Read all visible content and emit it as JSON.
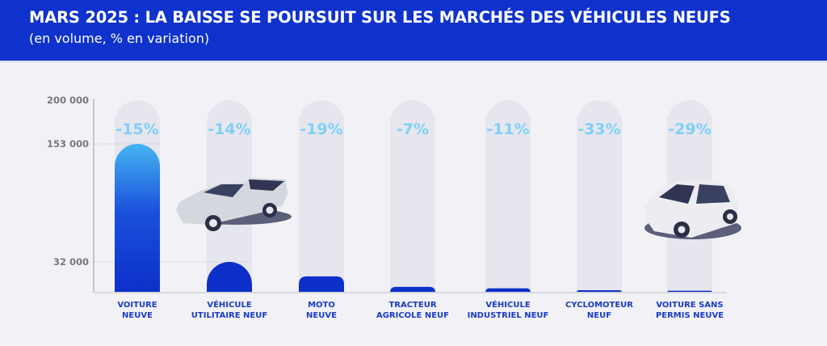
{
  "header": {
    "title": "MARS 2025 : LA BAISSE SE POURSUIT SUR LES MARCHÉS DES VÉHICULES NEUFS",
    "subtitle": "(en volume, % en variation)"
  },
  "chart_data": {
    "type": "bar",
    "title": "MARS 2025 : LA BAISSE SE POURSUIT SUR LES MARCHÉS DES VÉHICULES NEUFS",
    "subtitle": "(en volume, % en variation)",
    "xlabel": "",
    "ylabel": "",
    "ylim": [
      0,
      200000
    ],
    "yticks": [
      {
        "value": 200000,
        "label": "200 000"
      },
      {
        "value": 153000,
        "label": "153 000"
      },
      {
        "value": 32000,
        "label": "32 000"
      }
    ],
    "categories": [
      [
        "VOITURE",
        "NEUVE"
      ],
      [
        "VÉHICULE",
        "UTILITAIRE NEUF"
      ],
      [
        "MOTO",
        "NEUVE"
      ],
      [
        "TRACTEUR",
        "AGRICOLE NEUF"
      ],
      [
        "VÉHICULE",
        "INDUSTRIEL NEUF"
      ],
      [
        "CYCLOMOTEUR",
        "NEUF"
      ],
      [
        "VOITURE SANS",
        "PERMIS NEUVE"
      ]
    ],
    "values": [
      153000,
      32000,
      17000,
      6000,
      4500,
      2500,
      2000
    ],
    "variations": [
      "-15%",
      "-14%",
      "-19%",
      "-7%",
      "-11%",
      "-33%",
      "-29%"
    ],
    "colors": {
      "bar": "#0c2fc9",
      "bar_top": "#46b4f2",
      "variation": "#7fd0f6",
      "track": "#e6e6ee"
    }
  }
}
